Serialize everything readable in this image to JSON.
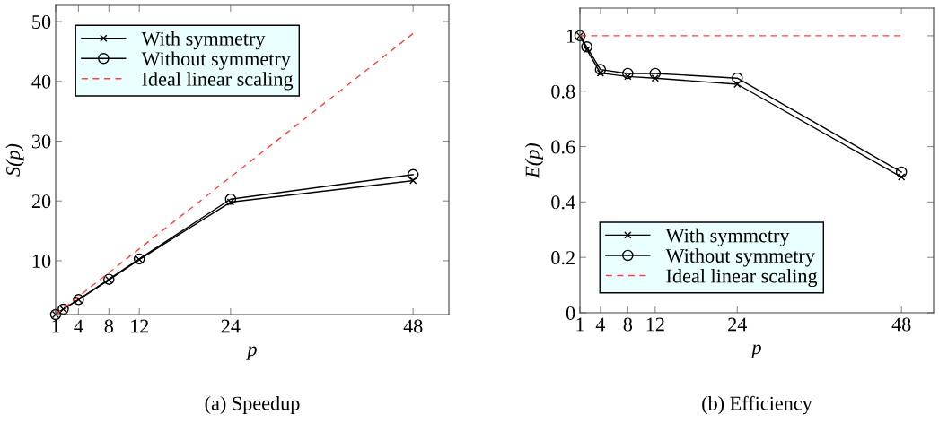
{
  "chart_data": [
    {
      "type": "line",
      "title": "(a) Speedup",
      "xlabel": "p",
      "ylabel": "S(p)",
      "x": [
        1,
        2,
        4,
        8,
        12,
        24,
        48
      ],
      "series": [
        {
          "name": "With symmetry",
          "color": "#000000",
          "marker": "cross",
          "line_style": "solid",
          "values": [
            1.0,
            1.9,
            3.5,
            6.8,
            10.2,
            19.8,
            23.4
          ]
        },
        {
          "name": "Without symmetry",
          "color": "#000000",
          "marker": "circle",
          "line_style": "solid",
          "values": [
            1.0,
            1.9,
            3.5,
            6.9,
            10.3,
            20.3,
            24.4
          ]
        },
        {
          "name": "Ideal linear scaling",
          "color": "#ff4040",
          "marker": "none",
          "line_style": "dashed",
          "values": [
            1,
            2,
            4,
            8,
            12,
            24,
            48
          ]
        }
      ],
      "xlim": [
        1,
        52.7
      ],
      "ylim": [
        1,
        52.7
      ],
      "xticks": [
        1,
        4,
        8,
        12,
        24,
        48
      ],
      "yticks": [
        10,
        20,
        30,
        40,
        50
      ],
      "grid": false,
      "legend": "top left"
    },
    {
      "type": "line",
      "title": "(b) Efficiency",
      "xlabel": "p",
      "ylabel": "E(p)",
      "x": [
        1,
        2,
        4,
        8,
        12,
        24,
        48
      ],
      "series": [
        {
          "name": "With symmetry",
          "color": "#000000",
          "marker": "cross",
          "line_style": "solid",
          "values": [
            1.0,
            0.95,
            0.865,
            0.853,
            0.847,
            0.825,
            0.49
          ]
        },
        {
          "name": "Without symmetry",
          "color": "#000000",
          "marker": "circle",
          "line_style": "solid",
          "values": [
            1.0,
            0.96,
            0.878,
            0.864,
            0.864,
            0.847,
            0.508
          ]
        },
        {
          "name": "Ideal linear scaling",
          "color": "#ff4040",
          "marker": "none",
          "line_style": "dashed",
          "values": [
            1,
            1,
            1,
            1,
            1,
            1,
            1
          ]
        }
      ],
      "xlim": [
        1,
        52.7
      ],
      "ylim": [
        0,
        1.1
      ],
      "xticks": [
        1,
        4,
        8,
        12,
        24,
        48
      ],
      "yticks": [
        0,
        0.2,
        0.4,
        0.6,
        0.8,
        1
      ],
      "grid": false,
      "legend": "bottom left"
    }
  ]
}
